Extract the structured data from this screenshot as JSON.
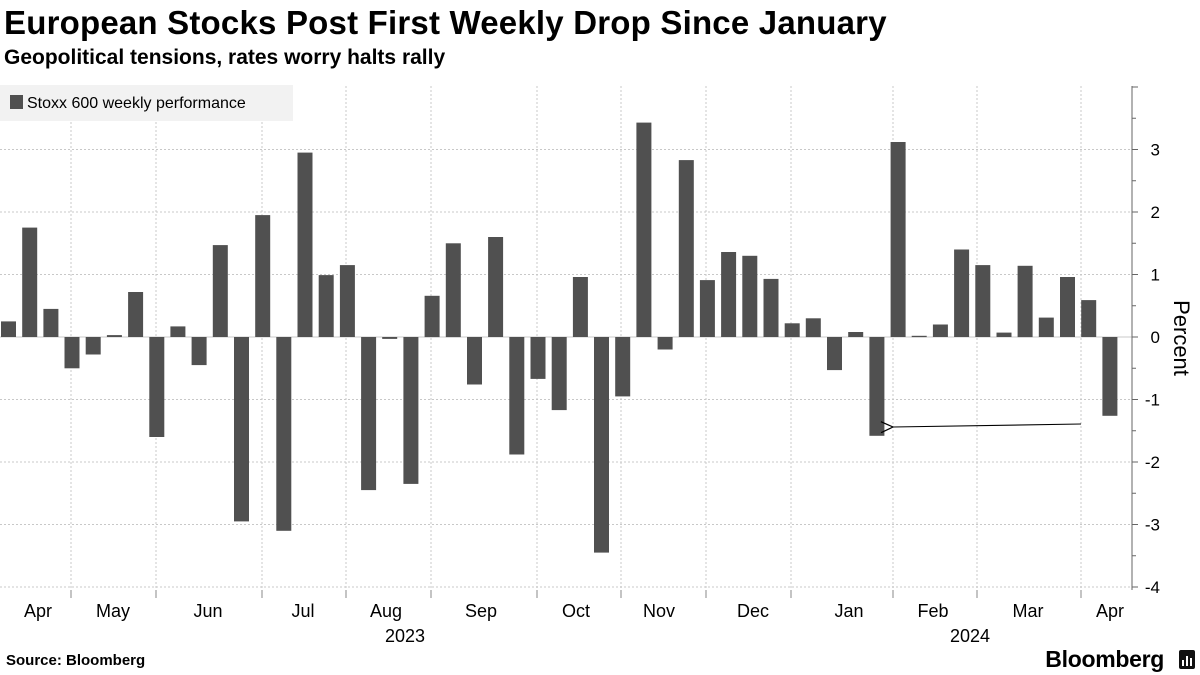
{
  "header": {
    "title": "European Stocks Post First Weekly Drop Since January",
    "subtitle": "Geopolitical tensions, rates worry halts rally"
  },
  "footer": {
    "source": "Source: Bloomberg",
    "brand": "Bloomberg"
  },
  "colors": {
    "bar": "#505050",
    "grid": "#c8c8c8",
    "legend_bg": "#f2f2f2",
    "text": "#000000"
  },
  "chart_data": {
    "type": "bar",
    "legend": [
      "Stoxx 600 weekly performance"
    ],
    "legend_position": "top-left",
    "ylabel": "Percent",
    "y_axis_side": "right",
    "ylim": [
      -4,
      4
    ],
    "yticks": [
      3,
      2,
      1,
      0,
      -1,
      -2,
      -3,
      -4
    ],
    "grid": true,
    "month_labels": [
      "Apr",
      "May",
      "Jun",
      "Jul",
      "Aug",
      "Sep",
      "Oct",
      "Nov",
      "Dec",
      "Jan",
      "Feb",
      "Mar",
      "Apr"
    ],
    "year_labels": [
      "2023",
      "2024"
    ],
    "annotation": "arrow pointing from the latest weekly drop back to the previous weekly drop in January",
    "series": [
      {
        "name": "Stoxx 600 weekly performance",
        "values": [
          0.25,
          1.75,
          0.45,
          -0.5,
          -0.28,
          0.03,
          0.72,
          -1.6,
          0.17,
          -0.45,
          1.47,
          -2.95,
          1.95,
          -3.1,
          2.95,
          0.99,
          1.15,
          -2.45,
          -0.03,
          -2.35,
          0.66,
          1.5,
          -0.76,
          1.6,
          -1.88,
          -0.67,
          -1.17,
          0.96,
          -3.45,
          -0.95,
          3.43,
          -0.2,
          2.83,
          0.91,
          1.36,
          1.3,
          0.93,
          0.22,
          0.3,
          -0.53,
          0.08,
          -1.58,
          3.12,
          0.02,
          0.2,
          1.4,
          1.15,
          0.07,
          1.14,
          0.31,
          0.96,
          0.59,
          -1.26
        ]
      }
    ]
  }
}
